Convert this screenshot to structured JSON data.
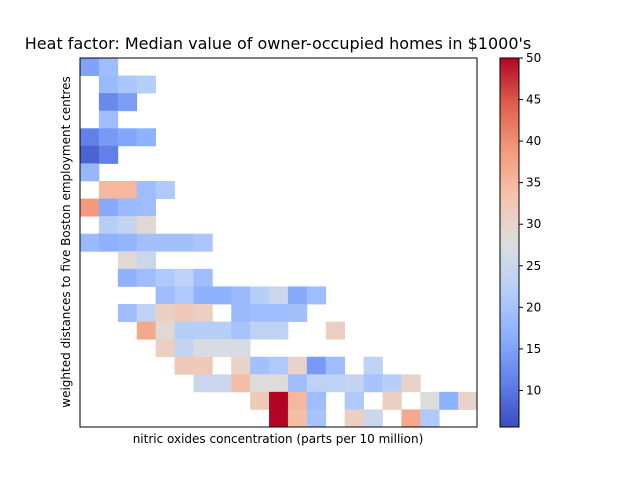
{
  "chart_data": {
    "type": "heatmap",
    "title": "Heat factor: Median value of owner-occupied homes in $1000's",
    "xlabel": "nitric oxides concentration (parts per 10 million)",
    "ylabel": "weighted distances to five Boston employment centres",
    "colormap": "coolwarm",
    "value_range": [
      5.6,
      50
    ],
    "colorbar_ticks": [
      10,
      15,
      20,
      25,
      30,
      35,
      40,
      45,
      50
    ],
    "grid_columns": 21,
    "grid_rows": 21,
    "x_ticks_shown": false,
    "y_ticks_shown": false,
    "cells": [
      [
        0,
        0,
        15.0
      ],
      [
        0,
        1,
        19.0
      ],
      [
        1,
        1,
        18.5
      ],
      [
        1,
        2,
        20.5
      ],
      [
        1,
        3,
        22.0
      ],
      [
        2,
        1,
        12.0
      ],
      [
        2,
        2,
        14.5
      ],
      [
        3,
        1,
        19.0
      ],
      [
        4,
        0,
        11.0
      ],
      [
        4,
        1,
        14.0
      ],
      [
        4,
        2,
        15.5
      ],
      [
        4,
        3,
        17.0
      ],
      [
        5,
        0,
        8.0
      ],
      [
        5,
        1,
        11.0
      ],
      [
        6,
        0,
        18.0
      ],
      [
        7,
        1,
        35.0
      ],
      [
        7,
        2,
        35.0
      ],
      [
        7,
        3,
        19.0
      ],
      [
        7,
        4,
        21.0
      ],
      [
        8,
        0,
        39.0
      ],
      [
        8,
        1,
        16.0
      ],
      [
        8,
        2,
        18.5
      ],
      [
        8,
        3,
        19.0
      ],
      [
        9,
        1,
        22.0
      ],
      [
        9,
        2,
        24.0
      ],
      [
        9,
        3,
        29.0
      ],
      [
        10,
        0,
        18.5
      ],
      [
        10,
        1,
        17.0
      ],
      [
        10,
        2,
        17.5
      ],
      [
        10,
        3,
        19.5
      ],
      [
        10,
        4,
        19.5
      ],
      [
        10,
        5,
        19.5
      ],
      [
        10,
        6,
        20.5
      ],
      [
        11,
        2,
        29.0
      ],
      [
        11,
        3,
        25.0
      ],
      [
        12,
        2,
        17.0
      ],
      [
        12,
        3,
        19.0
      ],
      [
        12,
        4,
        21.0
      ],
      [
        12,
        5,
        23.0
      ],
      [
        12,
        6,
        19.0
      ],
      [
        13,
        4,
        19.0
      ],
      [
        13,
        5,
        21.0
      ],
      [
        13,
        6,
        17.0
      ],
      [
        13,
        7,
        17.0
      ],
      [
        13,
        8,
        18.5
      ],
      [
        13,
        9,
        22.0
      ],
      [
        13,
        10,
        25.0
      ],
      [
        13,
        11,
        16.0
      ],
      [
        13,
        12,
        19.0
      ],
      [
        14,
        2,
        19.0
      ],
      [
        14,
        3,
        23.0
      ],
      [
        14,
        4,
        31.0
      ],
      [
        14,
        5,
        32.0
      ],
      [
        14,
        6,
        31.0
      ],
      [
        14,
        8,
        18.5
      ],
      [
        14,
        9,
        19.0
      ],
      [
        14,
        10,
        19.0
      ],
      [
        14,
        11,
        19.5
      ],
      [
        15,
        3,
        37.0
      ],
      [
        15,
        4,
        29.0
      ],
      [
        15,
        5,
        22.0
      ],
      [
        15,
        6,
        22.0
      ],
      [
        15,
        7,
        22.0
      ],
      [
        15,
        8,
        20.0
      ],
      [
        15,
        9,
        23.0
      ],
      [
        15,
        10,
        23.0
      ],
      [
        15,
        13,
        31.0
      ],
      [
        16,
        4,
        31.0
      ],
      [
        16,
        5,
        24.0
      ],
      [
        16,
        6,
        27.0
      ],
      [
        16,
        7,
        27.0
      ],
      [
        16,
        8,
        27.0
      ],
      [
        17,
        5,
        32.0
      ],
      [
        17,
        6,
        32.0
      ],
      [
        17,
        8,
        30.0
      ],
      [
        17,
        9,
        19.5
      ],
      [
        17,
        10,
        21.0
      ],
      [
        17,
        11,
        30.0
      ],
      [
        17,
        12,
        14.0
      ],
      [
        17,
        13,
        19.0
      ],
      [
        17,
        15,
        23.0
      ],
      [
        18,
        6,
        25.0
      ],
      [
        18,
        7,
        25.0
      ],
      [
        18,
        8,
        34.0
      ],
      [
        18,
        9,
        28.0
      ],
      [
        18,
        10,
        28.0
      ],
      [
        18,
        11,
        19.0
      ],
      [
        18,
        12,
        23.0
      ],
      [
        18,
        13,
        23.0
      ],
      [
        18,
        14,
        24.0
      ],
      [
        18,
        15,
        20.0
      ],
      [
        18,
        16,
        22.0
      ],
      [
        18,
        17,
        30.0
      ],
      [
        19,
        9,
        32.0
      ],
      [
        19,
        10,
        50.0
      ],
      [
        19,
        11,
        35.0
      ],
      [
        19,
        12,
        19.0
      ],
      [
        19,
        14,
        21.0
      ],
      [
        19,
        16,
        31.0
      ],
      [
        19,
        18,
        28.0
      ],
      [
        19,
        19,
        17.0
      ],
      [
        19,
        20,
        30.0
      ],
      [
        20,
        10,
        50.0
      ],
      [
        20,
        11,
        34.0
      ],
      [
        20,
        12,
        20.0
      ],
      [
        20,
        14,
        31.0
      ],
      [
        20,
        15,
        25.0
      ],
      [
        20,
        17,
        37.0
      ],
      [
        20,
        18,
        21.0
      ]
    ]
  }
}
